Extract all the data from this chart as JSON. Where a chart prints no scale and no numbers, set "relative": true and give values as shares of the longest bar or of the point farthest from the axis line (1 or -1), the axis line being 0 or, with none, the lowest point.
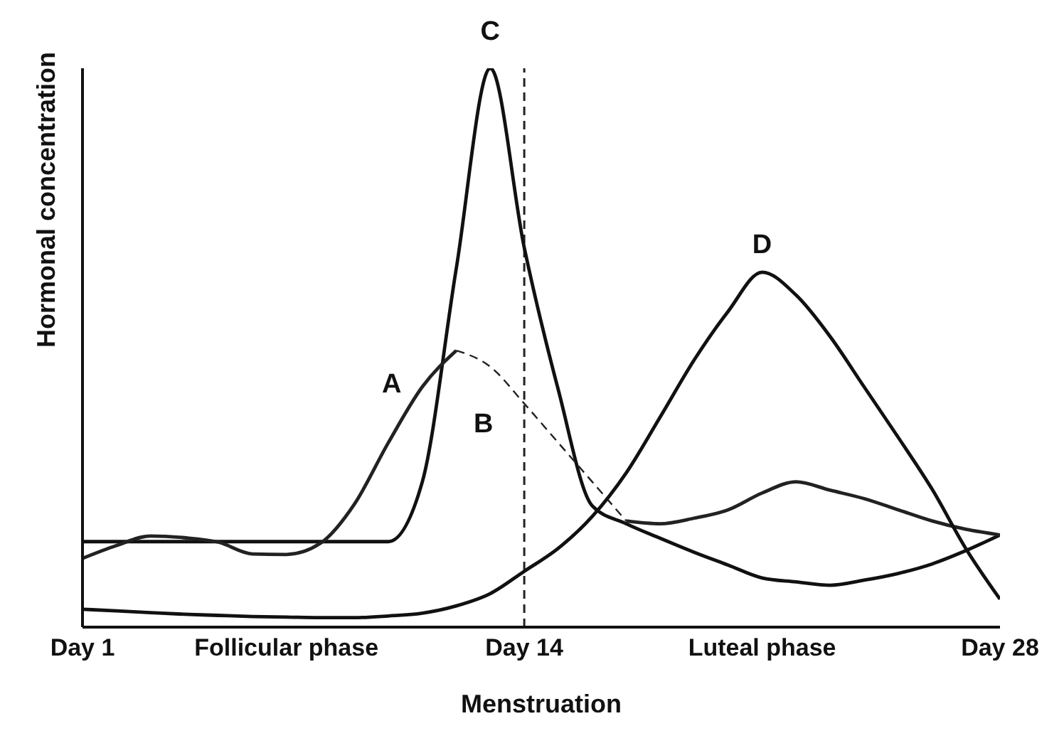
{
  "chart_data": {
    "type": "line",
    "relative": true,
    "xlabel": "Menstruation",
    "ylabel": "Hormonal concentration",
    "categories": [
      "Day 1",
      null,
      null,
      null,
      null,
      null,
      "Follicular phase",
      null,
      null,
      null,
      null,
      null,
      null,
      "Day 14",
      null,
      null,
      null,
      null,
      null,
      null,
      "Luteal phase",
      null,
      null,
      null,
      null,
      null,
      null,
      "Day 28"
    ],
    "grid": false,
    "legend": false,
    "marker": "none",
    "ref_lines": [
      {
        "axis": "x",
        "value": "Day 14",
        "line_style": "dashed",
        "color": "#222222"
      }
    ],
    "annotations": [
      "A",
      "B",
      "C",
      "D"
    ],
    "series": [
      {
        "color": "#111111",
        "line_style": "solid",
        "values": [
          0.153,
          0.153,
          0.153,
          0.153,
          0.153,
          0.153,
          0.153,
          0.153,
          0.153,
          0.153,
          0.26,
          0.642,
          1.0,
          0.679,
          0.425,
          0.217,
          0.185,
          0.159,
          0.134,
          0.111,
          0.088,
          0.081,
          0.075,
          0.084,
          0.096,
          0.113,
          0.137,
          0.165
        ]
      },
      {
        "color": "#222222",
        "line_style": "solid",
        "values": [
          0.123,
          0.146,
          0.163,
          0.16,
          0.152,
          0.131,
          0.13,
          0.15,
          0.22,
          0.33,
          0.43,
          0.495,
          null,
          null,
          null,
          null,
          null,
          null,
          null,
          null,
          null,
          null,
          null,
          null,
          null,
          null,
          null,
          null
        ]
      },
      {
        "color": "#222222",
        "line_style": "dashed",
        "values": [
          null,
          null,
          null,
          null,
          null,
          null,
          null,
          null,
          null,
          null,
          null,
          0.495,
          0.466,
          0.4,
          0.33,
          0.26,
          0.19,
          null,
          null,
          null,
          null,
          null,
          null,
          null,
          null,
          null,
          null,
          null
        ]
      },
      {
        "color": "#222222",
        "line_style": "solid",
        "values": [
          null,
          null,
          null,
          null,
          null,
          null,
          null,
          null,
          null,
          null,
          null,
          null,
          null,
          null,
          null,
          null,
          0.19,
          0.185,
          0.195,
          0.21,
          0.24,
          0.26,
          0.245,
          0.23,
          0.21,
          0.19,
          0.175,
          0.165
        ]
      },
      {
        "color": "#111111",
        "line_style": "solid",
        "values": [
          0.032,
          0.029,
          0.026,
          0.023,
          0.021,
          0.019,
          0.018,
          0.017,
          0.017,
          0.02,
          0.025,
          0.038,
          0.06,
          0.1,
          0.141,
          0.198,
          0.276,
          0.376,
          0.478,
          0.565,
          0.635,
          0.594,
          0.52,
          0.43,
          0.34,
          0.247,
          0.14,
          0.05
        ]
      }
    ]
  }
}
